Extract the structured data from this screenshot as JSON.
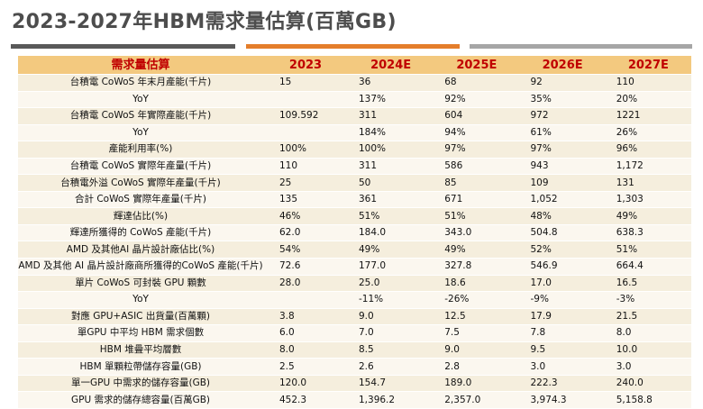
{
  "title": "2023-2027年HBM需求量估算(百萬GB)",
  "colors": {
    "rule_left": "#595959",
    "rule_mid": "#e47e2b",
    "rule_right": "#a6a6a6",
    "header_bg": "#f3c97f",
    "header_text": "#c00000",
    "row_bg_odd": "#f5eedd",
    "row_bg_even": "#fbf7ef"
  },
  "table": {
    "headers": [
      "需求量估算",
      "2023",
      "2024E",
      "2025E",
      "2026E",
      "2027E"
    ],
    "rows": [
      {
        "label": "台積電 CoWoS 年末月產能(千片)",
        "values": [
          "15",
          "36",
          "68",
          "92",
          "110"
        ]
      },
      {
        "label": "YoY",
        "values": [
          "",
          "137%",
          "92%",
          "35%",
          "20%"
        ]
      },
      {
        "label": "台積電 CoWoS 年實際產能(千片)",
        "values": [
          "109.592",
          "311",
          "604",
          "972",
          "1221"
        ]
      },
      {
        "label": "YoY",
        "values": [
          "",
          "184%",
          "94%",
          "61%",
          "26%"
        ]
      },
      {
        "label": "產能利用率(%)",
        "values": [
          "100%",
          "100%",
          "97%",
          "97%",
          "96%"
        ]
      },
      {
        "label": "台積電 CoWoS 實際年產量(千片)",
        "values": [
          "110",
          "311",
          "586",
          "943",
          "1,172"
        ]
      },
      {
        "label": "台積電外溢 CoWoS 實際年產量(千片)",
        "values": [
          "25",
          "50",
          "85",
          "109",
          "131"
        ]
      },
      {
        "label": "合計 CoWoS 實際年產量(千片)",
        "values": [
          "135",
          "361",
          "671",
          "1,052",
          "1,303"
        ]
      },
      {
        "label": "輝達佔比(%)",
        "values": [
          "46%",
          "51%",
          "51%",
          "48%",
          "49%"
        ]
      },
      {
        "label": "輝達所獲得的 CoWoS 產能(千片)",
        "values": [
          "62.0",
          "184.0",
          "343.0",
          "504.8",
          "638.3"
        ]
      },
      {
        "label": "AMD 及其他AI 晶片設計廠佔比(%)",
        "values": [
          "54%",
          "49%",
          "49%",
          "52%",
          "51%"
        ]
      },
      {
        "label": "AMD 及其他 AI 晶片設計廠商所獲得的CoWoS 產能(千片)",
        "values": [
          "72.6",
          "177.0",
          "327.8",
          "546.9",
          "664.4"
        ]
      },
      {
        "label": "單片 CoWoS 可封裝 GPU 顆數",
        "values": [
          "28.0",
          "25.0",
          "18.6",
          "17.0",
          "16.5"
        ]
      },
      {
        "label": "YoY",
        "values": [
          "",
          "-11%",
          "-26%",
          "-9%",
          "-3%"
        ]
      },
      {
        "label": "對應 GPU+ASIC 出貨量(百萬顆)",
        "values": [
          "3.8",
          "9.0",
          "12.5",
          "17.9",
          "21.5"
        ]
      },
      {
        "label": "單GPU 中平均 HBM 需求個數",
        "values": [
          "6.0",
          "7.0",
          "7.5",
          "7.8",
          "8.0"
        ]
      },
      {
        "label": "HBM 堆疊平均層數",
        "values": [
          "8.0",
          "8.5",
          "9.0",
          "9.5",
          "10.0"
        ]
      },
      {
        "label": "HBM 單顆粒帶儲存容量(GB)",
        "values": [
          "2.5",
          "2.6",
          "2.8",
          "3.0",
          "3.0"
        ]
      },
      {
        "label": "單一GPU 中需求的儲存容量(GB)",
        "values": [
          "120.0",
          "154.7",
          "189.0",
          "222.3",
          "240.0"
        ]
      },
      {
        "label": "GPU 需求的儲存總容量(百萬GB)",
        "values": [
          "452.3",
          "1,396.2",
          "2,357.0",
          "3,974.3",
          "5,158.8"
        ]
      }
    ]
  }
}
